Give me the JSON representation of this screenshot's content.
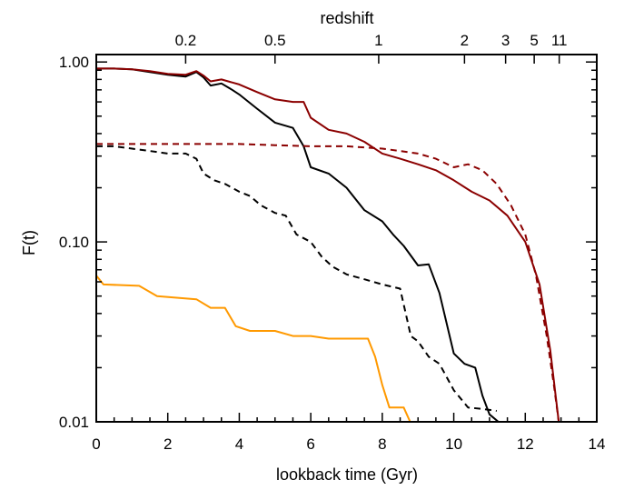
{
  "chart_data": {
    "type": "line",
    "xlabel": "lookback time (Gyr)",
    "ylabel": "F(t)",
    "top_axis_label": "redshift",
    "xlim": [
      0,
      14
    ],
    "ylim": [
      0.01,
      1.1
    ],
    "yscale": "log",
    "x_ticks": [
      {
        "value": 0,
        "label": "0"
      },
      {
        "value": 2,
        "label": "2"
      },
      {
        "value": 4,
        "label": "4"
      },
      {
        "value": 6,
        "label": "6"
      },
      {
        "value": 8,
        "label": "8"
      },
      {
        "value": 10,
        "label": "10"
      },
      {
        "value": 12,
        "label": "12"
      },
      {
        "value": 14,
        "label": "14"
      }
    ],
    "y_ticks": [
      {
        "value": 0.01,
        "label": "0.01"
      },
      {
        "value": 0.1,
        "label": "0.10"
      },
      {
        "value": 1.0,
        "label": "1.00"
      }
    ],
    "top_ticks": [
      {
        "value": 2.5,
        "label": "0.2"
      },
      {
        "value": 5.0,
        "label": "0.5"
      },
      {
        "value": 7.9,
        "label": "1"
      },
      {
        "value": 10.3,
        "label": "2"
      },
      {
        "value": 11.45,
        "label": "3"
      },
      {
        "value": 12.25,
        "label": "5"
      },
      {
        "value": 12.95,
        "label": "11"
      }
    ],
    "grid": false,
    "series": [
      {
        "color": "#000000",
        "dash": "solid",
        "x": [
          0,
          0.5,
          1.0,
          1.5,
          2.0,
          2.5,
          2.8,
          3.0,
          3.2,
          3.5,
          3.8,
          4.0,
          4.5,
          5.0,
          5.5,
          5.8,
          6.0,
          6.5,
          7.0,
          7.5,
          8.0,
          8.3,
          8.6,
          9.0,
          9.3,
          9.6,
          10.0,
          10.3,
          10.6,
          10.8,
          11.0,
          11.3
        ],
        "y": [
          0.92,
          0.92,
          0.91,
          0.88,
          0.85,
          0.83,
          0.88,
          0.82,
          0.74,
          0.76,
          0.7,
          0.66,
          0.55,
          0.46,
          0.43,
          0.34,
          0.26,
          0.24,
          0.2,
          0.15,
          0.13,
          0.11,
          0.095,
          0.074,
          0.075,
          0.052,
          0.024,
          0.021,
          0.02,
          0.014,
          0.011,
          0.0098
        ]
      },
      {
        "color": "#000000",
        "dash": "dashed",
        "x": [
          0,
          0.5,
          1.0,
          1.5,
          2.0,
          2.5,
          2.8,
          3.0,
          3.3,
          3.6,
          4.0,
          4.3,
          4.6,
          5.0,
          5.3,
          5.6,
          6.0,
          6.3,
          6.6,
          7.0,
          7.5,
          8.0,
          8.5,
          8.8,
          9.0,
          9.3,
          9.6,
          10.0,
          10.4,
          10.8,
          11.2
        ],
        "y": [
          0.34,
          0.34,
          0.33,
          0.32,
          0.31,
          0.31,
          0.29,
          0.24,
          0.22,
          0.21,
          0.19,
          0.18,
          0.16,
          0.145,
          0.14,
          0.11,
          0.1,
          0.083,
          0.073,
          0.066,
          0.062,
          0.058,
          0.055,
          0.03,
          0.028,
          0.023,
          0.021,
          0.015,
          0.012,
          0.0118,
          0.0115
        ]
      },
      {
        "color": "#8b0000",
        "dash": "solid",
        "x": [
          0,
          0.5,
          1.0,
          1.5,
          2.0,
          2.5,
          2.8,
          3.0,
          3.2,
          3.5,
          4.0,
          4.5,
          5.0,
          5.5,
          5.8,
          6.0,
          6.5,
          7.0,
          7.5,
          8.0,
          8.5,
          9.0,
          9.5,
          10.0,
          10.5,
          11.0,
          11.5,
          12.0,
          12.4,
          12.7,
          12.85,
          12.95
        ],
        "y": [
          0.92,
          0.92,
          0.91,
          0.89,
          0.86,
          0.85,
          0.89,
          0.84,
          0.78,
          0.8,
          0.75,
          0.68,
          0.62,
          0.6,
          0.6,
          0.49,
          0.42,
          0.4,
          0.36,
          0.31,
          0.29,
          0.27,
          0.25,
          0.22,
          0.19,
          0.17,
          0.14,
          0.1,
          0.058,
          0.025,
          0.014,
          0.0095
        ]
      },
      {
        "color": "#8b0000",
        "dash": "dashed",
        "x": [
          0,
          1.0,
          2.0,
          3.0,
          4.0,
          5.0,
          6.0,
          7.0,
          7.5,
          8.0,
          8.5,
          9.0,
          9.5,
          10.0,
          10.4,
          10.8,
          11.2,
          11.6,
          12.0,
          12.3,
          12.6,
          12.8,
          12.95
        ],
        "y": [
          0.35,
          0.35,
          0.35,
          0.35,
          0.35,
          0.345,
          0.34,
          0.34,
          0.335,
          0.33,
          0.32,
          0.31,
          0.29,
          0.26,
          0.27,
          0.25,
          0.21,
          0.16,
          0.11,
          0.065,
          0.03,
          0.016,
          0.0095
        ]
      },
      {
        "color": "#ff9900",
        "dash": "solid",
        "x": [
          0,
          0.2,
          1.2,
          1.7,
          2.8,
          3.2,
          3.6,
          3.9,
          4.3,
          5.0,
          5.5,
          6.0,
          6.5,
          7.0,
          7.6,
          7.8,
          8.0,
          8.2,
          8.6,
          8.8
        ],
        "y": [
          0.065,
          0.058,
          0.057,
          0.05,
          0.048,
          0.043,
          0.043,
          0.034,
          0.032,
          0.032,
          0.03,
          0.03,
          0.029,
          0.029,
          0.029,
          0.023,
          0.016,
          0.012,
          0.012,
          0.0098
        ]
      }
    ]
  }
}
